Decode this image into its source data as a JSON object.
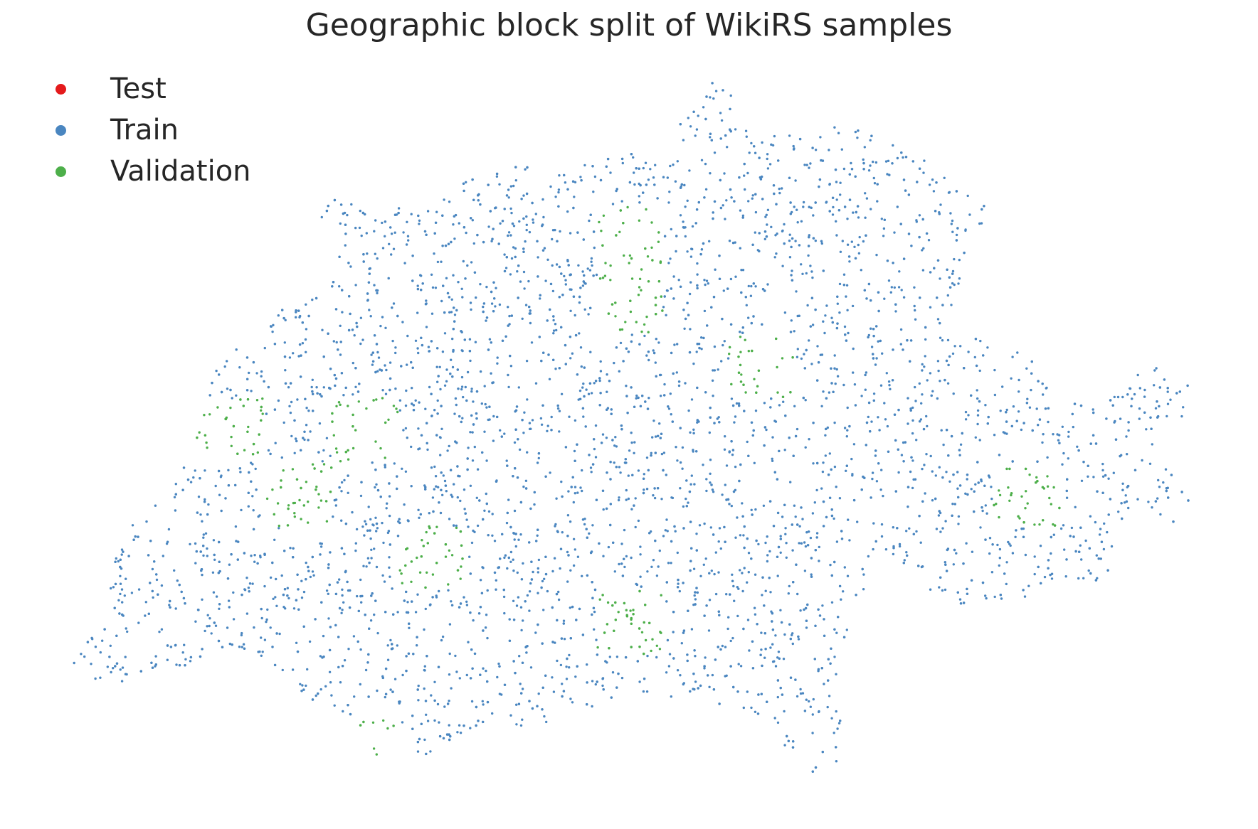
{
  "figure": {
    "title": "Geographic block split of WikiRS samples"
  },
  "legend": {
    "items": [
      {
        "label": "Test",
        "color": "#e41a1c"
      },
      {
        "label": "Train",
        "color": "#4a86c0"
      },
      {
        "label": "Validation",
        "color": "#4daf4a"
      }
    ]
  },
  "chart_data": {
    "type": "scatter",
    "title": "Geographic block split of WikiRS samples",
    "xlabel": "",
    "ylabel": "",
    "axes_visible": false,
    "grid": false,
    "legend_position": "top-left",
    "series": [
      {
        "name": "Test",
        "color": "#e41a1c"
      },
      {
        "name": "Train",
        "color": "#4a86c0"
      },
      {
        "name": "Validation",
        "color": "#4daf4a"
      }
    ],
    "block_grid": {
      "cols": 17,
      "rows": 11
    },
    "block_assignments": [
      "..........TTT....",
      "..TTTT....TTTT...",
      "....TT.TVT.......",
      "...TT..TVT.......",
      "TV...TTT.TV......",
      ".VV.V......T.....",
      "TTTV..TT....TTV.T",
      ".....V.......T...",
      "........V........",
      "....T..T.........",
      "...TVT..........."
    ]
  }
}
